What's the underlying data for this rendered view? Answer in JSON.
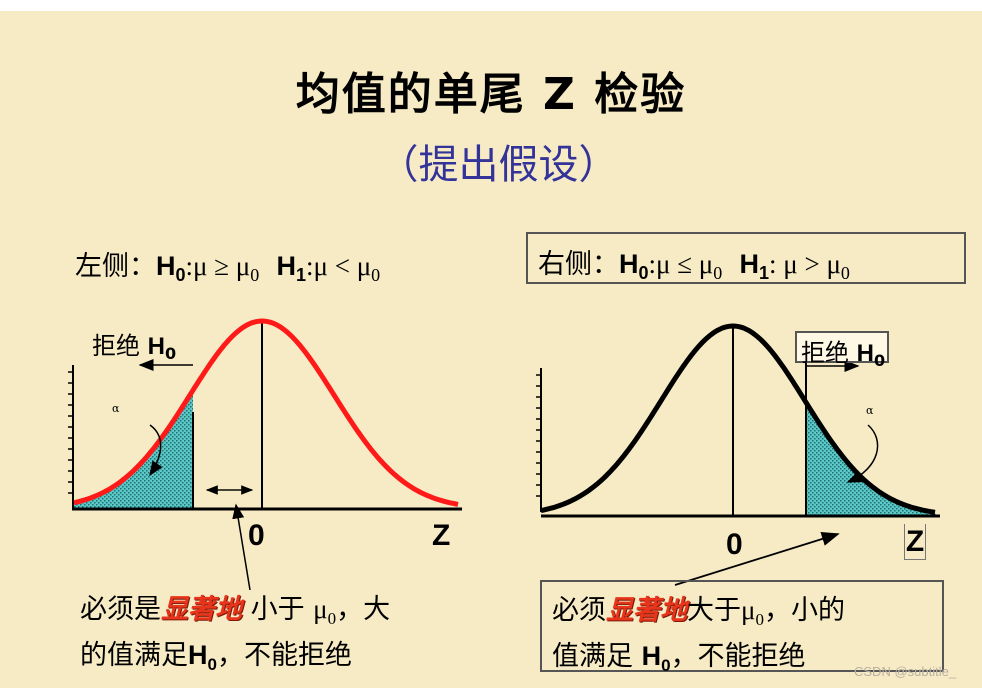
{
  "title": "均值的单尾 Z 检验",
  "subtitle": "（提出假设）",
  "left_panel": {
    "side": "左侧：",
    "h0_label": "H",
    "h0_sub": "0",
    "h0_relation": ":μ ≥ μ",
    "h0_value_sub": "0",
    "h1_label": "H",
    "h1_sub": "1",
    "h1_relation": ":μ < μ",
    "h1_value_sub": "0",
    "reject_text": "拒绝 ",
    "reject_h": "H",
    "reject_sub": "0",
    "alpha": "α",
    "zero": "0",
    "z": "Z",
    "note_part1": "必须是",
    "note_emph": "显著地",
    "note_part2": " 小于 ",
    "note_mu": "μ",
    "note_mu_sub": "0",
    "note_part3": "，大",
    "note_line2a": "的值满足",
    "note_h": "H",
    "note_h_sub": "0",
    "note_line2b": "，不能拒绝"
  },
  "right_panel": {
    "side": "右侧：",
    "h0_label": "H",
    "h0_sub": "0",
    "h0_relation": ":μ ≤ μ",
    "h0_value_sub": "0",
    "h1_label": "H",
    "h1_sub": "1",
    "h1_relation": ": μ > μ",
    "h1_value_sub": "0",
    "reject_text": "拒绝 ",
    "reject_h": "H",
    "reject_sub": "0",
    "alpha": "α",
    "zero": "0",
    "z": "Z",
    "note_part1": "必须",
    "note_emph": "显著地",
    "note_part2": "大于",
    "note_mu": "μ",
    "note_mu_sub": "0",
    "note_part3": "，小的",
    "note_line2a": "值满足 ",
    "note_h": "H",
    "note_h_sub": "0",
    "note_line2b": "，不能拒绝"
  },
  "watermark": "CSDN @subtitle_",
  "colors": {
    "background": "#f7ebc6",
    "left_curve": "#ff1a1a",
    "right_curve": "#000000",
    "tail_fill": "#5cc8c8",
    "subtitle": "#333399",
    "emphasis": "#e8341a"
  }
}
